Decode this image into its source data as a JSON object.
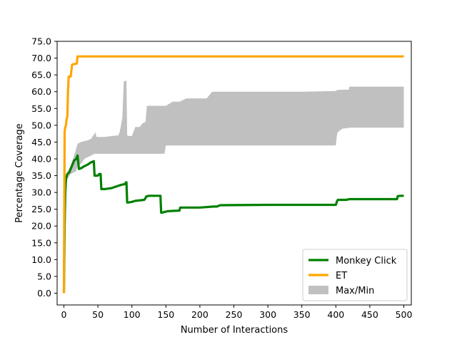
{
  "chart_data": {
    "type": "line",
    "xlabel": "Number of Interactions",
    "ylabel": "Percentage Coverage",
    "xlim": [
      -10,
      511
    ],
    "ylim": [
      -3.5,
      75
    ],
    "xticks": [
      0,
      50,
      100,
      150,
      200,
      250,
      300,
      350,
      400,
      450,
      500
    ],
    "xtick_labels": [
      "0",
      "50",
      "100",
      "150",
      "200",
      "250",
      "300",
      "350",
      "400",
      "450",
      "500"
    ],
    "yticks": [
      0,
      5,
      10,
      15,
      20,
      25,
      30,
      35,
      40,
      45,
      50,
      55,
      60,
      65,
      70,
      75
    ],
    "ytick_labels": [
      "0.0",
      "5.0",
      "10.0",
      "15.0",
      "20.0",
      "25.0",
      "30.0",
      "35.0",
      "40.0",
      "45.0",
      "50.0",
      "55.0",
      "60.0",
      "65.0",
      "70.0",
      "75.0"
    ],
    "grid": false,
    "legend_position": "lower-right",
    "series": [
      {
        "name": "Monkey Click",
        "color": "#008000",
        "x": [
          0,
          1,
          2,
          3,
          5,
          8,
          12,
          15,
          18,
          20,
          22,
          25,
          30,
          35,
          40,
          44,
          45,
          50,
          52,
          54,
          55,
          60,
          70,
          80,
          85,
          90,
          91,
          92,
          93,
          95,
          100,
          105,
          110,
          118,
          120,
          121,
          125,
          130,
          140,
          142,
          143,
          145,
          148,
          150,
          152,
          160,
          170,
          171,
          180,
          200,
          220,
          225,
          230,
          300,
          400,
          402,
          403,
          405,
          410,
          415,
          420,
          440,
          460,
          489,
          490,
          491,
          495,
          500
        ],
        "y": [
          0,
          20,
          30,
          34,
          35.5,
          36,
          38,
          39.5,
          40,
          41,
          37,
          37.2,
          37.8,
          38.3,
          39,
          39.3,
          35,
          35,
          35.5,
          35.5,
          31,
          31,
          31.3,
          32,
          32.3,
          32.5,
          33,
          33,
          27,
          27,
          27.2,
          27.5,
          27.6,
          27.8,
          28.3,
          28.8,
          29,
          29,
          29,
          29,
          24,
          24,
          24.2,
          24.3,
          24.4,
          24.5,
          24.6,
          25.5,
          25.5,
          25.5,
          25.8,
          25.8,
          26.2,
          26.3,
          26.3,
          27.5,
          27.8,
          27.8,
          27.8,
          27.8,
          28,
          28,
          28,
          28,
          28,
          28.9,
          29,
          29
        ]
      },
      {
        "name": "ET",
        "color": "#ffa500",
        "x": [
          0,
          1,
          2,
          3,
          4,
          5,
          6,
          7,
          8,
          10,
          12,
          14,
          18,
          19,
          20,
          22,
          50,
          100,
          200,
          300,
          400,
          500
        ],
        "y": [
          0,
          48,
          49.5,
          50,
          52,
          52.5,
          60,
          64.5,
          64.5,
          64.5,
          68,
          68.2,
          68.3,
          68.4,
          70.5,
          70.5,
          70.5,
          70.5,
          70.5,
          70.5,
          70.5,
          70.5
        ]
      },
      {
        "name": "Max/Min",
        "color": "#c0c0c0",
        "x": [
          0,
          2,
          5,
          10,
          15,
          18,
          20,
          25,
          30,
          35,
          40,
          45,
          46,
          48,
          60,
          70,
          80,
          82,
          84,
          86,
          88,
          90,
          92,
          93,
          94,
          95,
          100,
          105,
          110,
          112,
          115,
          120,
          122,
          125,
          130,
          140,
          148,
          150,
          160,
          170,
          180,
          190,
          200,
          210,
          218,
          220,
          250,
          300,
          350,
          400,
          401,
          402,
          403,
          410,
          419,
          420,
          450,
          500
        ],
        "y_max": [
          0,
          33,
          36,
          38,
          41,
          43,
          44.5,
          45,
          45.3,
          45.5,
          46,
          47.5,
          48,
          46.5,
          46.5,
          46.8,
          47,
          48,
          50,
          52.5,
          63,
          63.2,
          63.3,
          47,
          47,
          46.8,
          46.8,
          49.5,
          49.5,
          49.6,
          50.5,
          51,
          55.8,
          55.8,
          55.8,
          55.8,
          55.8,
          55.8,
          57,
          57,
          58,
          58,
          58,
          58,
          60,
          60,
          60,
          60,
          60,
          60.2,
          60.4,
          60.5,
          60.5,
          60.6,
          60.6,
          61.5,
          61.5,
          61.5
        ],
        "y_min": [
          0,
          30,
          34,
          35.5,
          36,
          36.3,
          38,
          38.5,
          40,
          40.5,
          41,
          41.5,
          41.5,
          41.5,
          41.5,
          41.5,
          41.5,
          41.5,
          41.5,
          41.5,
          41.5,
          41.5,
          41.5,
          41.5,
          41.5,
          41.5,
          41.5,
          41.5,
          41.5,
          41.5,
          41.5,
          41.5,
          41.5,
          41.5,
          41.5,
          41.5,
          41.5,
          44,
          44,
          44,
          44,
          44,
          44,
          44,
          44,
          44,
          44,
          44,
          44,
          44,
          46,
          47.5,
          48,
          49,
          49.2,
          49.3,
          49.3,
          49.3
        ]
      }
    ]
  }
}
